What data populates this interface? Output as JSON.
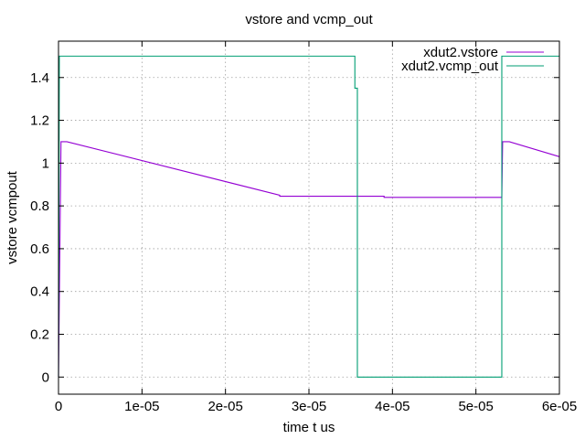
{
  "chart_data": {
    "type": "line",
    "title": "vstore and vcmp_out",
    "xlabel": "time t us",
    "ylabel": "vstore vcmpout",
    "xlim": [
      0,
      6e-05
    ],
    "ylim": [
      -0.08,
      1.57
    ],
    "x_ticks": [
      "0",
      "1e-05",
      "2e-05",
      "3e-05",
      "4e-05",
      "5e-05",
      "6e-05"
    ],
    "y_ticks": [
      "0",
      "0.2",
      "0.4",
      "0.6",
      "0.8",
      "1",
      "1.2",
      "1.4"
    ],
    "grid": true,
    "legend_position": "top-right",
    "series": [
      {
        "name": "xdut2.vstore",
        "color": "#9400d3",
        "points": [
          [
            0,
            0
          ],
          [
            3e-07,
            1.1
          ],
          [
            1e-06,
            1.1
          ],
          [
            2.65e-05,
            0.85
          ],
          [
            2.65e-05,
            0.845
          ],
          [
            3.9e-05,
            0.845
          ],
          [
            3.9e-05,
            0.84
          ],
          [
            5.31e-05,
            0.84
          ],
          [
            5.32e-05,
            1.1
          ],
          [
            5.4e-05,
            1.1
          ],
          [
            6e-05,
            1.03
          ]
        ]
      },
      {
        "name": "xdut2.vcmp_out",
        "color": "#009e73",
        "points": [
          [
            0,
            0
          ],
          [
            1e-07,
            1.5
          ],
          [
            3.55e-05,
            1.5
          ],
          [
            3.55e-05,
            1.35
          ],
          [
            3.58e-05,
            1.35
          ],
          [
            3.58e-05,
            0
          ],
          [
            5.31e-05,
            0
          ],
          [
            5.31e-05,
            1.5
          ],
          [
            6e-05,
            1.5
          ]
        ]
      }
    ]
  }
}
